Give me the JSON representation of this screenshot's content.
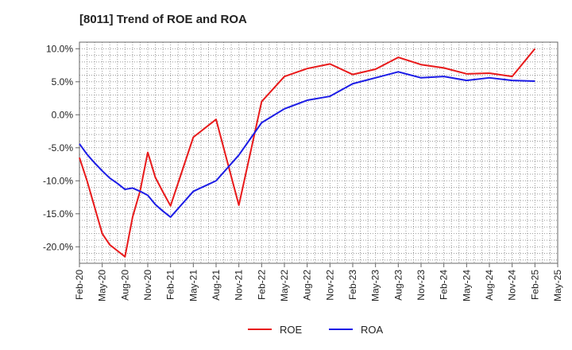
{
  "chart_data": {
    "type": "line",
    "title": "[8011]  Trend of ROE and ROA",
    "xlabel": "",
    "ylabel": "",
    "ylim": [
      -22.5,
      11
    ],
    "yticks": [
      10,
      5,
      0,
      -5,
      -10,
      -15,
      -20
    ],
    "ytick_labels": [
      "10.0%",
      "5.0%",
      "0.0%",
      "-5.0%",
      "-10.0%",
      "-15.0%",
      "-20.0%"
    ],
    "xtick_labels": [
      "Feb-20",
      "May-20",
      "Aug-20",
      "Nov-20",
      "Feb-21",
      "May-21",
      "Aug-21",
      "Nov-21",
      "Feb-22",
      "May-22",
      "Aug-22",
      "Nov-22",
      "Feb-23",
      "May-23",
      "Aug-23",
      "Nov-23",
      "Feb-24",
      "May-24",
      "Aug-24",
      "Nov-24",
      "Feb-25",
      "May-25"
    ],
    "grid": true,
    "legend_position": "bottom-center",
    "x": [
      "Feb-20",
      "Mar-20",
      "Apr-20",
      "May-20",
      "Jun-20",
      "Jul-20",
      "Aug-20",
      "Sep-20",
      "Oct-20",
      "Nov-20",
      "Dec-20",
      "Jan-21",
      "Feb-21",
      "May-21",
      "Aug-21",
      "Nov-21",
      "Feb-22",
      "May-22",
      "Aug-22",
      "Nov-22",
      "Feb-23",
      "May-23",
      "Aug-23",
      "Nov-23",
      "Feb-24",
      "May-24",
      "Aug-24",
      "Nov-24",
      "Feb-25"
    ],
    "series": [
      {
        "name": "ROE",
        "color": "#e8191a",
        "values": [
          -6.5,
          -10.0,
          -14.0,
          -18.0,
          -19.7,
          -20.6,
          -21.5,
          -15.5,
          -11.5,
          -5.7,
          -9.5,
          -11.7,
          -13.8,
          -3.4,
          -0.7,
          -13.7,
          2.0,
          5.8,
          7.0,
          7.7,
          6.1,
          6.9,
          8.7,
          7.6,
          7.1,
          6.2,
          6.3,
          5.8,
          10.0
        ]
      },
      {
        "name": "ROA",
        "color": "#1c1ce6",
        "values": [
          -4.4,
          -6.0,
          -7.3,
          -8.5,
          -9.6,
          -10.4,
          -11.3,
          -11.1,
          -11.6,
          -12.2,
          -13.6,
          -14.6,
          -15.5,
          -11.6,
          -10.0,
          -6.1,
          -1.2,
          0.9,
          2.2,
          2.8,
          4.7,
          5.6,
          6.5,
          5.6,
          5.8,
          5.2,
          5.6,
          5.2,
          5.1
        ]
      }
    ]
  }
}
